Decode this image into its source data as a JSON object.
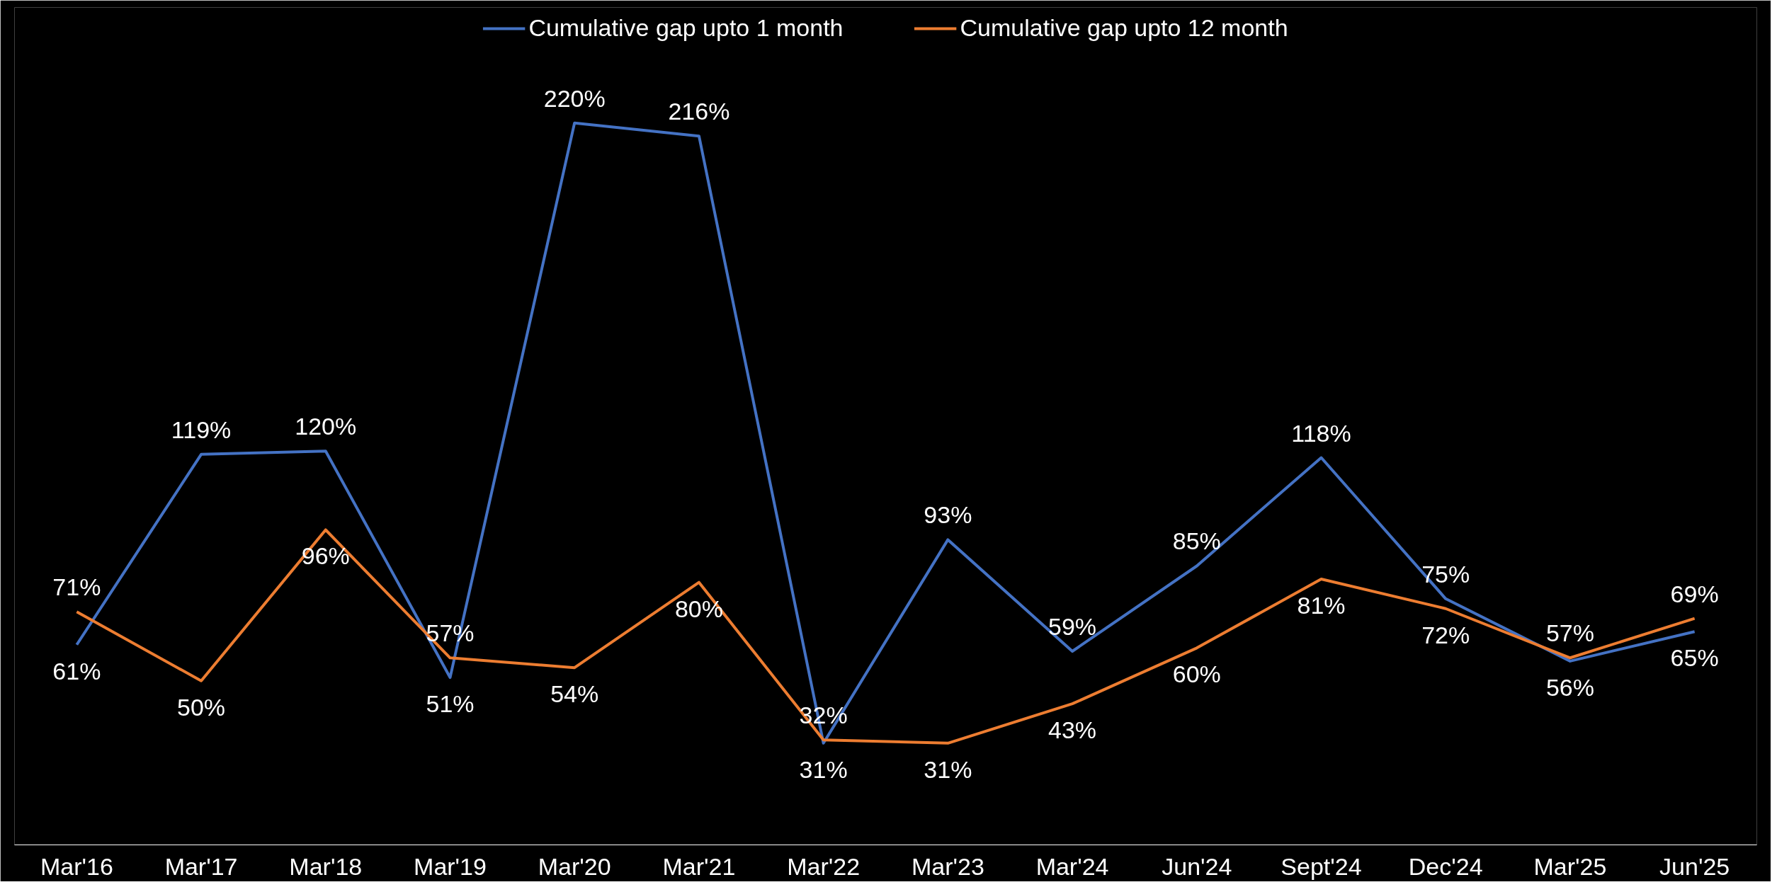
{
  "chart_data": {
    "type": "line",
    "categories": [
      "Mar'16",
      "Mar'17",
      "Mar'18",
      "Mar'19",
      "Mar'20",
      "Mar'21",
      "Mar'22",
      "Mar'23",
      "Mar'24",
      "Jun'24",
      "Sept'24",
      "Dec'24",
      "Mar'25",
      "Jun'25"
    ],
    "series": [
      {
        "name": "Cumulative gap upto 1 month",
        "color": "#4472c4",
        "values": [
          61,
          119,
          120,
          51,
          220,
          216,
          31,
          93,
          59,
          85,
          118,
          75,
          56,
          65
        ],
        "value_labels": [
          "61%",
          "119%",
          "120%",
          "51%",
          "220%",
          "216%",
          "31%",
          "93%",
          "59%",
          "85%",
          "118%",
          "75%",
          "56%",
          "65%"
        ]
      },
      {
        "name": "Cumulative gap upto 12 month",
        "color": "#ed7d31",
        "values": [
          71,
          50,
          96,
          57,
          54,
          80,
          32,
          31,
          43,
          60,
          81,
          72,
          57,
          69
        ],
        "value_labels": [
          "71%",
          "50%",
          "96%",
          "57%",
          "54%",
          "80%",
          "32%",
          "31%",
          "43%",
          "60%",
          "81%",
          "72%",
          "57%",
          "69%"
        ]
      }
    ],
    "legend": "top",
    "tick_labels": "x"
  }
}
